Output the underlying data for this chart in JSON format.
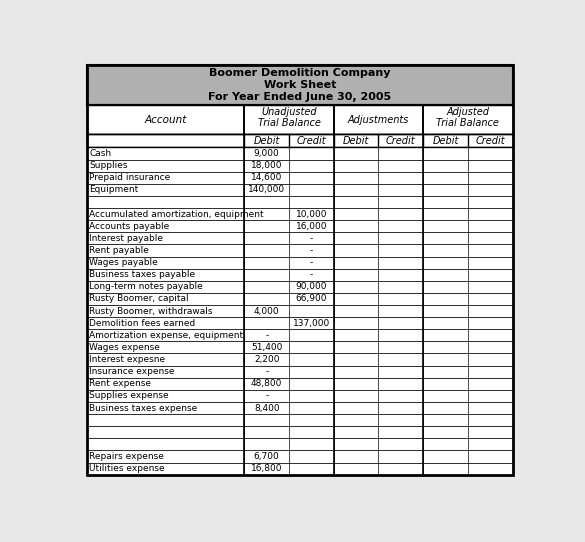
{
  "title_line1": "Boomer Demolition Company",
  "title_line2": "Work Sheet",
  "title_line3": "For Year Ended June 30, 2005",
  "title_bg": "#b0b0b0",
  "white": "#ffffff",
  "outer_bg": "#e8e8e8",
  "border_color": "#000000",
  "text_color": "#000000",
  "sub_headers": [
    "Debit",
    "Credit",
    "Debit",
    "Credit",
    "Debit",
    "Credit"
  ],
  "rows": [
    {
      "account": "Cash",
      "utb_d": "9,000",
      "utb_c": ""
    },
    {
      "account": "Supplies",
      "utb_d": "18,000",
      "utb_c": ""
    },
    {
      "account": "Prepaid insurance",
      "utb_d": "14,600",
      "utb_c": ""
    },
    {
      "account": "Equipment",
      "utb_d": "140,000",
      "utb_c": ""
    },
    {
      "account": "",
      "utb_d": "",
      "utb_c": ""
    },
    {
      "account": "Accumulated amortization, equipment",
      "utb_d": "",
      "utb_c": "10,000"
    },
    {
      "account": "Accounts payable",
      "utb_d": "",
      "utb_c": "16,000"
    },
    {
      "account": "Interest payable",
      "utb_d": "",
      "utb_c": "-"
    },
    {
      "account": "Rent payable",
      "utb_d": "",
      "utb_c": "-"
    },
    {
      "account": "Wages payable",
      "utb_d": "",
      "utb_c": "-"
    },
    {
      "account": "Business taxes payable",
      "utb_d": "",
      "utb_c": "-"
    },
    {
      "account": "Long-term notes payable",
      "utb_d": "",
      "utb_c": "90,000"
    },
    {
      "account": "Rusty Boomer, capital",
      "utb_d": "",
      "utb_c": "66,900"
    },
    {
      "account": "Rusty Boomer, withdrawals",
      "utb_d": "4,000",
      "utb_c": ""
    },
    {
      "account": "Demolition fees earned",
      "utb_d": "",
      "utb_c": "137,000"
    },
    {
      "account": "Amortization expense, equipment",
      "utb_d": "-",
      "utb_c": ""
    },
    {
      "account": "Wages expense",
      "utb_d": "51,400",
      "utb_c": ""
    },
    {
      "account": "Interest expesne",
      "utb_d": "2,200",
      "utb_c": ""
    },
    {
      "account": "Insurance expense",
      "utb_d": "-",
      "utb_c": ""
    },
    {
      "account": "Rent expense",
      "utb_d": "48,800",
      "utb_c": ""
    },
    {
      "account": "Supplies expense",
      "utb_d": "-",
      "utb_c": ""
    },
    {
      "account": "Business taxes expense",
      "utb_d": "8,400",
      "utb_c": ""
    },
    {
      "account": "",
      "utb_d": "",
      "utb_c": ""
    },
    {
      "account": "",
      "utb_d": "",
      "utb_c": ""
    },
    {
      "account": "",
      "utb_d": "",
      "utb_c": ""
    },
    {
      "account": "Repairs expense",
      "utb_d": "6,700",
      "utb_c": ""
    },
    {
      "account": "Utilities expense",
      "utb_d": "16,800",
      "utb_c": ""
    }
  ]
}
